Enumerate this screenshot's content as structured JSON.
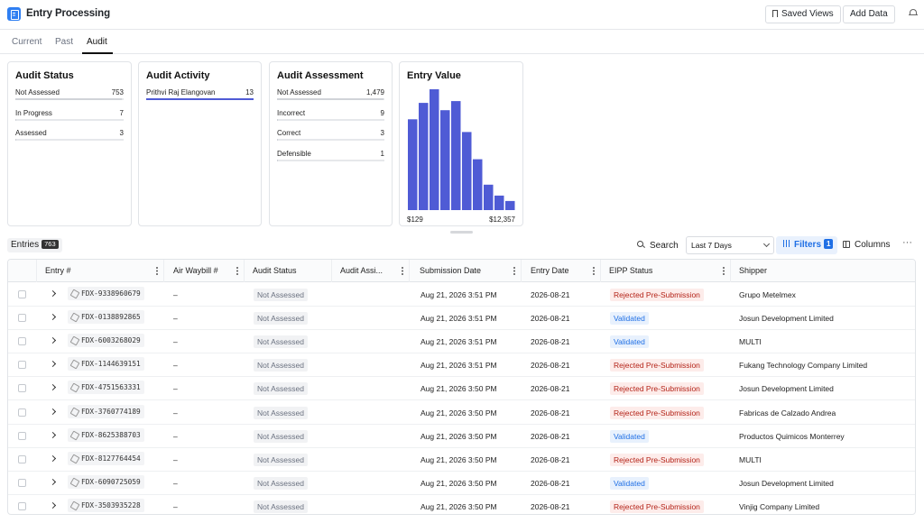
{
  "header": {
    "app_icon": "clipboard-icon",
    "title": "Entry Processing",
    "saved_views_label": "Saved Views",
    "add_data_label": "Add Data",
    "bell_icon": "bell-icon"
  },
  "tabs": [
    {
      "label": "Current",
      "active": false
    },
    {
      "label": "Past",
      "active": false
    },
    {
      "label": "Audit",
      "active": true
    }
  ],
  "cards": {
    "audit_status": {
      "title": "Audit Status",
      "rows": [
        {
          "label": "Not Assessed",
          "value": "753",
          "fraction": 0.985
        },
        {
          "label": "In Progress",
          "value": "7",
          "fraction": 0.01
        },
        {
          "label": "Assessed",
          "value": "3",
          "fraction": 0.005
        }
      ]
    },
    "audit_activity": {
      "title": "Audit Activity",
      "rows": [
        {
          "label": "Prithvi Raj Elangovan",
          "value": "13",
          "fraction": 1.0
        }
      ]
    },
    "audit_assessment": {
      "title": "Audit Assessment",
      "rows": [
        {
          "label": "Not Assessed",
          "value": "1,479",
          "fraction": 0.99
        },
        {
          "label": "Incorrect",
          "value": "9",
          "fraction": 0.006
        },
        {
          "label": "Correct",
          "value": "3",
          "fraction": 0.003
        },
        {
          "label": "Defensible",
          "value": "1",
          "fraction": 0.001
        }
      ]
    },
    "entry_value": {
      "title": "Entry Value",
      "min_label": "$129",
      "max_label": "$12,357",
      "bar_color": "#4f5bd5"
    }
  },
  "chart_data": {
    "type": "bar",
    "title": "Entry Value",
    "x_range_labels": [
      "$129",
      "$12,357"
    ],
    "values": [
      100,
      118,
      133,
      110,
      120,
      86,
      56,
      28,
      16,
      10
    ],
    "ylim": [
      0,
      135
    ]
  },
  "toolbar": {
    "entries_label": "Entries",
    "entries_count": "763",
    "search_label": "Search",
    "date_range": "Last 7 Days",
    "filters_label": "Filters",
    "filters_count": "1",
    "columns_label": "Columns",
    "more_label": "···"
  },
  "table": {
    "columns": [
      "Entry #",
      "Air Waybill #",
      "Audit Status",
      "Audit Assi...",
      "Submission Date",
      "Entry Date",
      "EIPP Status",
      "Shipper"
    ],
    "rows": [
      {
        "entry": "FDX-9338960679",
        "awb": "–",
        "audit_status": "Not Assessed",
        "submission": "Aug 21, 2026 3:51 PM",
        "entry_date": "2026-08-21",
        "eipp": "Rejected Pre-Submission",
        "eipp_type": "red",
        "shipper": "Grupo Metelmex"
      },
      {
        "entry": "FDX-0138892865",
        "awb": "–",
        "audit_status": "Not Assessed",
        "submission": "Aug 21, 2026 3:51 PM",
        "entry_date": "2026-08-21",
        "eipp": "Validated",
        "eipp_type": "blue",
        "shipper": "Josun Development Limited"
      },
      {
        "entry": "FDX-6003268029",
        "awb": "–",
        "audit_status": "Not Assessed",
        "submission": "Aug 21, 2026 3:51 PM",
        "entry_date": "2026-08-21",
        "eipp": "Validated",
        "eipp_type": "blue",
        "shipper": "MULTI"
      },
      {
        "entry": "FDX-1144639151",
        "awb": "–",
        "audit_status": "Not Assessed",
        "submission": "Aug 21, 2026 3:51 PM",
        "entry_date": "2026-08-21",
        "eipp": "Rejected Pre-Submission",
        "eipp_type": "red",
        "shipper": "Fukang Technology Company Limited"
      },
      {
        "entry": "FDX-4751563331",
        "awb": "–",
        "audit_status": "Not Assessed",
        "submission": "Aug 21, 2026 3:50 PM",
        "entry_date": "2026-08-21",
        "eipp": "Rejected Pre-Submission",
        "eipp_type": "red",
        "shipper": "Josun Development Limited"
      },
      {
        "entry": "FDX-3760774189",
        "awb": "–",
        "audit_status": "Not Assessed",
        "submission": "Aug 21, 2026 3:50 PM",
        "entry_date": "2026-08-21",
        "eipp": "Rejected Pre-Submission",
        "eipp_type": "red",
        "shipper": "Fabricas de Calzado Andrea"
      },
      {
        "entry": "FDX-8625388703",
        "awb": "–",
        "audit_status": "Not Assessed",
        "submission": "Aug 21, 2026 3:50 PM",
        "entry_date": "2026-08-21",
        "eipp": "Validated",
        "eipp_type": "blue",
        "shipper": "Productos Quimicos Monterrey"
      },
      {
        "entry": "FDX-8127764454",
        "awb": "–",
        "audit_status": "Not Assessed",
        "submission": "Aug 21, 2026 3:50 PM",
        "entry_date": "2026-08-21",
        "eipp": "Rejected Pre-Submission",
        "eipp_type": "red",
        "shipper": "MULTI"
      },
      {
        "entry": "FDX-6090725059",
        "awb": "–",
        "audit_status": "Not Assessed",
        "submission": "Aug 21, 2026 3:50 PM",
        "entry_date": "2026-08-21",
        "eipp": "Validated",
        "eipp_type": "blue",
        "shipper": "Josun Development Limited"
      },
      {
        "entry": "FDX-3503935228",
        "awb": "–",
        "audit_status": "Not Assessed",
        "submission": "Aug 21, 2026 3:50 PM",
        "entry_date": "2026-08-21",
        "eipp": "Rejected Pre-Submission",
        "eipp_type": "red",
        "shipper": "Vinjig Company Limited"
      }
    ]
  }
}
